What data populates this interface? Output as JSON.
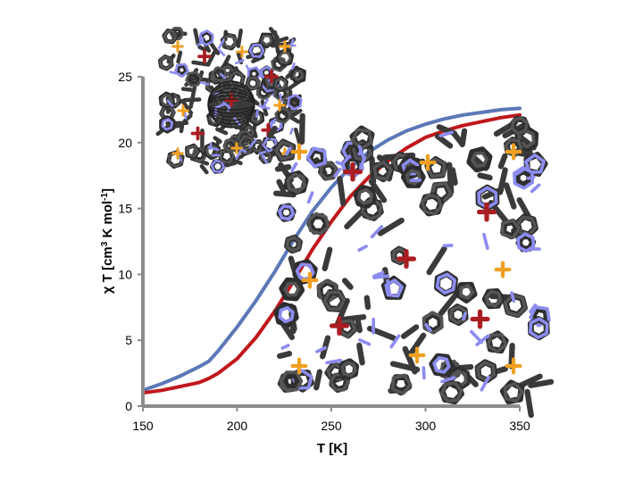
{
  "chart_data": {
    "type": "line",
    "xlabel": "T [K]",
    "ylabel": {
      "prefix": "χ T [cm",
      "sup1": "3",
      "middle": " K mol",
      "sup2": "-1",
      "suffix": "]"
    },
    "xlim": [
      150,
      350
    ],
    "ylim": [
      0,
      25
    ],
    "xticks": [
      150,
      200,
      250,
      300,
      350
    ],
    "yticks": [
      0,
      5,
      10,
      15,
      20,
      25
    ],
    "grid": false,
    "legend": "none",
    "series": [
      {
        "color": "#5b78b8",
        "x": [
          150,
          160,
          170,
          180,
          185,
          190,
          200,
          210,
          220,
          230,
          240,
          250,
          260,
          270,
          280,
          290,
          300,
          310,
          320,
          330,
          340,
          350
        ],
        "y": [
          1.2,
          1.7,
          2.3,
          3.0,
          3.4,
          4.2,
          6.0,
          8.0,
          10.2,
          12.6,
          14.8,
          16.6,
          18.1,
          19.3,
          20.2,
          20.9,
          21.4,
          21.8,
          22.1,
          22.3,
          22.5,
          22.6
        ]
      },
      {
        "color": "#c0171b",
        "x": [
          150,
          160,
          170,
          180,
          185,
          190,
          200,
          210,
          220,
          230,
          240,
          250,
          260,
          270,
          280,
          290,
          300,
          310,
          320,
          330,
          340,
          350
        ],
        "y": [
          1.0,
          1.2,
          1.5,
          1.8,
          2.1,
          2.5,
          3.6,
          5.2,
          7.2,
          9.5,
          11.9,
          14.0,
          15.9,
          17.4,
          18.6,
          19.6,
          20.4,
          20.9,
          21.3,
          21.6,
          21.9,
          22.1
        ]
      }
    ]
  },
  "inset_images": [
    {
      "description": "small molecular cage structure"
    },
    {
      "description": "large molecular cage structure"
    }
  ],
  "colors": {
    "axis": "#8c8c8c",
    "carbon": "#545454",
    "nitrogen": "#8c8cf0",
    "phosphorus": "#f0a020",
    "metal": "#aa1d22"
  }
}
